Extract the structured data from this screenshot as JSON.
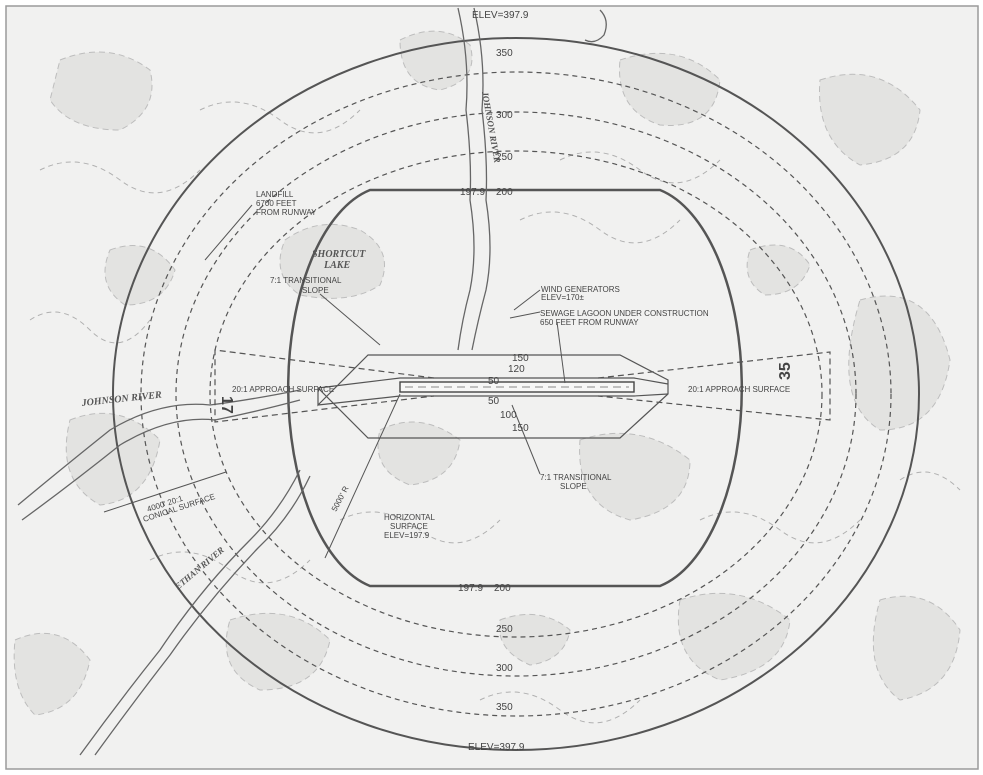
{
  "map": {
    "elev_top": "ELEV=397.9",
    "elev_bottom": "ELEV=397.9",
    "contours_top": [
      "350",
      "300",
      "250",
      "200"
    ],
    "contours_bottom": [
      "250",
      "300",
      "350"
    ],
    "horizontal_top": "197.9",
    "horizontal_bottom_a": "197.9",
    "horizontal_bottom_b": "200",
    "runway_17": "17",
    "runway_35": "35",
    "transitional_labels": [
      "150",
      "120",
      "50",
      "50",
      "100",
      "150"
    ],
    "landfill": [
      "LANDFILL",
      "6700 FEET",
      "FROM RUNWAY"
    ],
    "shortcut_lake": [
      "SHORTCUT",
      "LAKE"
    ],
    "transitional_slope_upper": [
      "7:1 TRANSITIONAL",
      "SLOPE"
    ],
    "transitional_slope_lower": [
      "7:1 TRANSITIONAL",
      "SLOPE"
    ],
    "wind_generators": [
      "WIND GENERATORS",
      "ELEV=170±"
    ],
    "sewage_lagoon": [
      "SEWAGE LAGOON UNDER CONSTRUCTION",
      "650 FEET FROM RUNWAY"
    ],
    "approach_left": "20:1 APPROACH SURFACE",
    "approach_right": "20:1 APPROACH SURFACE",
    "horizontal_surface": [
      "HORIZONTAL",
      "SURFACE",
      "ELEV=197.9"
    ],
    "conical_surface": [
      "4000' 20:1",
      "CONICAL SURFACE"
    ],
    "radius_label": "5000' R",
    "johnson_river_north": "JOHNSON RIVER",
    "johnson_river_west": "JOHNSON RIVER",
    "ethan_river": "ETHAN RIVER"
  }
}
